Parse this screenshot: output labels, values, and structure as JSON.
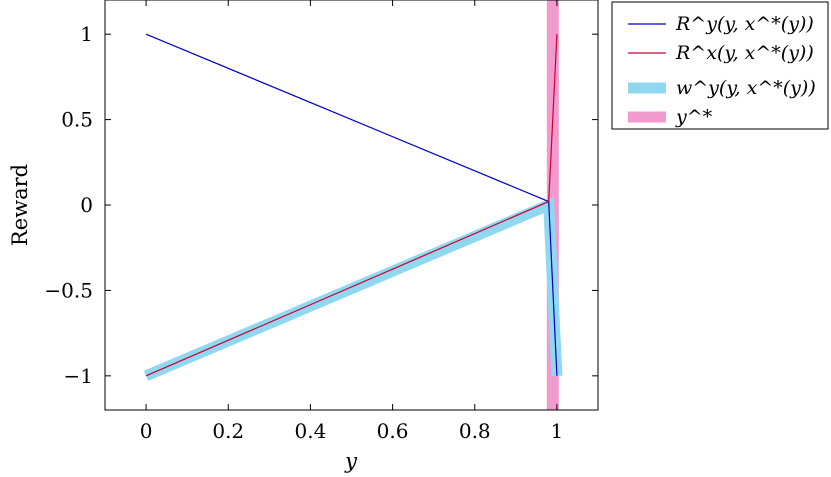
{
  "chart_data": {
    "type": "line",
    "xlabel": "y",
    "ylabel": "Reward",
    "xlim": [
      -0.1,
      1.1
    ],
    "ylim": [
      -1.2,
      1.2
    ],
    "xticks": [
      0,
      0.2,
      0.4,
      0.6,
      0.8,
      1
    ],
    "xtick_labels": [
      "0",
      "0.2",
      "0.4",
      "0.6",
      "0.8",
      "1"
    ],
    "yticks": [
      1,
      0.5,
      0,
      -0.5,
      -1
    ],
    "ytick_labels": [
      "1",
      "0.5",
      "0",
      "−0.5",
      "−1"
    ],
    "legend_position": "outside-right-top",
    "series": [
      {
        "name": "R^y(y, x^*(y))",
        "color": "#0000cc",
        "style": "thin",
        "x": [
          0,
          0.98,
          1.0
        ],
        "y": [
          1,
          0.02,
          -1
        ]
      },
      {
        "name": "R^x(y, x^*(y))",
        "color": "#cc0033",
        "style": "thin",
        "x": [
          0,
          0.98,
          1.0
        ],
        "y": [
          -1,
          0.02,
          1
        ]
      },
      {
        "name": "w^y(y, x^*(y))",
        "color": "#8fd8f0",
        "style": "thick",
        "x": [
          0,
          0.98,
          1.0
        ],
        "y": [
          -1,
          0.0,
          -1
        ]
      },
      {
        "name": "y^*",
        "color": "#f09ace",
        "style": "vline",
        "x": [
          0.99,
          0.99
        ],
        "y": [
          -1.2,
          1.2
        ]
      }
    ]
  }
}
